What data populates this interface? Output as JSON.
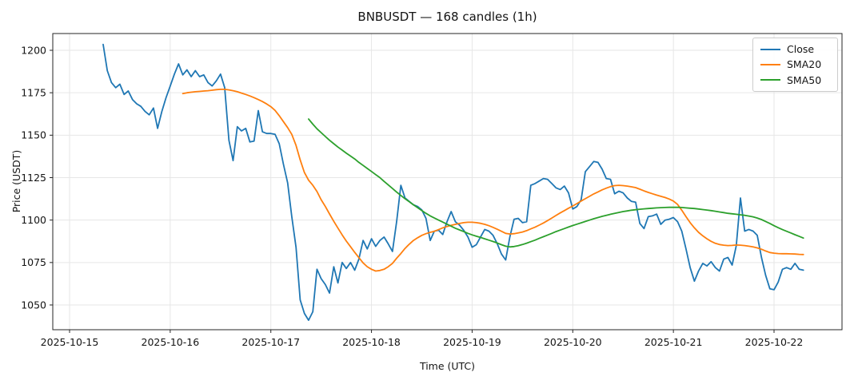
{
  "figure": {
    "title": "BNBUSDT — 168 candles (1h)",
    "xlabel": "Time (UTC)",
    "ylabel": "Price (USDT)"
  },
  "legend": {
    "position": "upper right",
    "items": [
      {
        "label": "Close",
        "color": "#1f77b4"
      },
      {
        "label": "SMA20",
        "color": "#ff7f0e"
      },
      {
        "label": "SMA50",
        "color": "#2ca02c"
      }
    ]
  },
  "style": {
    "background": "#ffffff",
    "grid_color": "#e6e6e6",
    "spine_color": "#262626",
    "text_color": "#141414",
    "line_width": 1.8
  },
  "chart_data": {
    "type": "line",
    "title": "BNBUSDT — 168 candles (1h)",
    "xlabel": "Time (UTC)",
    "ylabel": "Price (USDT)",
    "x_unit": "1h candles, 168 total",
    "x_tick_labels": [
      "2025-10-15",
      "2025-10-16",
      "2025-10-17",
      "2025-10-18",
      "2025-10-19",
      "2025-10-20",
      "2025-10-21",
      "2025-10-22"
    ],
    "first_candle_hour_offset_from_first_tick": 8,
    "y_ticks": [
      1050,
      1075,
      1100,
      1125,
      1150,
      1175,
      1200
    ],
    "ylim": [
      1035,
      1210
    ],
    "grid": true,
    "legend_position": "upper right",
    "series": [
      {
        "name": "Close",
        "color": "#1f77b4",
        "start_index": 0,
        "values": [
          1203.5,
          1188,
          1181,
          1178,
          1180,
          1174,
          1176,
          1171,
          1168.5,
          1167,
          1164,
          1162,
          1166,
          1154,
          1164,
          1172,
          1179,
          1186,
          1192,
          1185.5,
          1188.5,
          1184.5,
          1188,
          1184.5,
          1185.5,
          1181,
          1179,
          1182,
          1186,
          1178,
          1147,
          1135,
          1155,
          1152.5,
          1154,
          1146,
          1146.5,
          1164.5,
          1152,
          1151,
          1151,
          1150.5,
          1145,
          1133,
          1122,
          1102,
          1084,
          1053,
          1045,
          1041,
          1046,
          1071,
          1065.5,
          1062,
          1057,
          1072.5,
          1063,
          1075,
          1071.5,
          1075,
          1070.5,
          1077,
          1088,
          1083,
          1089,
          1084.5,
          1088,
          1090,
          1086,
          1081.5,
          1099,
          1120.5,
          1113,
          1111,
          1109,
          1108,
          1106,
          1101,
          1088,
          1093.5,
          1094,
          1091.5,
          1099,
          1105,
          1099,
          1097,
          1094,
          1090,
          1084,
          1085.5,
          1090,
          1094.5,
          1093.5,
          1091,
          1086,
          1080,
          1076.5,
          1090,
          1100.5,
          1101,
          1098.5,
          1099,
          1120.5,
          1121.5,
          1123,
          1124.5,
          1124,
          1121.5,
          1119,
          1118,
          1120,
          1116,
          1106.5,
          1108,
          1112,
          1128.5,
          1131.5,
          1134.5,
          1134,
          1130,
          1124.5,
          1124,
          1115.5,
          1117,
          1116,
          1113,
          1111,
          1110.5,
          1098,
          1095,
          1102,
          1102.5,
          1103.5,
          1097.5,
          1100,
          1100.5,
          1101.5,
          1099,
          1093.5,
          1083,
          1072,
          1064,
          1070,
          1074.5,
          1073,
          1075.5,
          1072,
          1070,
          1077,
          1078,
          1073.5,
          1085,
          1113,
          1093.5,
          1094.5,
          1093.5,
          1091,
          1078,
          1067.5,
          1059.5,
          1059,
          1063.5,
          1071,
          1072,
          1071,
          1074.5,
          1071,
          1070.5
        ]
      },
      {
        "name": "SMA20",
        "color": "#ff7f0e",
        "start_index": 19,
        "values": [
          1174.5,
          1175,
          1175.3,
          1175.6,
          1175.8,
          1176,
          1176.2,
          1176.5,
          1176.8,
          1177,
          1177,
          1176.7,
          1176.2,
          1175.6,
          1174.8,
          1174,
          1173.1,
          1172.1,
          1171,
          1169.8,
          1168.4,
          1166.8,
          1164.6,
          1161.5,
          1158,
          1154.5,
          1150.5,
          1144,
          1135.5,
          1128,
          1123.5,
          1120.5,
          1116.8,
          1112,
          1108,
          1103.6,
          1099.3,
          1095.3,
          1091.3,
          1087.6,
          1084.3,
          1081,
          1077.9,
          1074.8,
          1072.5,
          1071,
          1070,
          1070.3,
          1071,
          1072.5,
          1074.5,
          1077.5,
          1080.3,
          1083.3,
          1085.8,
          1088,
          1089.6,
          1091,
          1092,
          1092.8,
          1093.4,
          1094.4,
          1095.4,
          1096.2,
          1096.9,
          1097.5,
          1098,
          1098.5,
          1098.7,
          1098.7,
          1098.5,
          1098.1,
          1097.5,
          1096.7,
          1095.7,
          1094.6,
          1093.4,
          1092.2,
          1091.8,
          1092,
          1092.4,
          1093,
          1093.8,
          1094.8,
          1095.8,
          1097,
          1098.3,
          1099.7,
          1101.2,
          1102.7,
          1104.2,
          1105.6,
          1107,
          1108.3,
          1109.7,
          1111.2,
          1112.6,
          1114,
          1115.4,
          1116.6,
          1117.8,
          1118.8,
          1119.7,
          1120.3,
          1120.5,
          1120.3,
          1120,
          1119.6,
          1119.1,
          1118.2,
          1117.2,
          1116.3,
          1115.5,
          1114.7,
          1114,
          1113.3,
          1112.4,
          1111.2,
          1109.2,
          1105.8,
          1102,
          1098.5,
          1095.4,
          1092.8,
          1090.7,
          1089,
          1087.5,
          1086.3,
          1085.6,
          1085.2,
          1085,
          1085.1,
          1085.3,
          1085.2,
          1085,
          1084.6,
          1084.2,
          1083.6,
          1082.8,
          1081.8,
          1080.9,
          1080.5,
          1080.3,
          1080.2,
          1080.2,
          1080.1,
          1080,
          1079.8,
          1079.7
        ]
      },
      {
        "name": "SMA50",
        "color": "#2ca02c",
        "start_index": 49,
        "values": [
          1159.5,
          1156.5,
          1153.8,
          1151.5,
          1149.2,
          1147,
          1145,
          1143,
          1141.2,
          1139.4,
          1137.7,
          1136,
          1134,
          1132.2,
          1130.4,
          1128.6,
          1126.8,
          1125,
          1122.8,
          1120.7,
          1118.6,
          1116.5,
          1114.5,
          1112.6,
          1110.8,
          1109,
          1107.3,
          1105.6,
          1104,
          1102.5,
          1101.2,
          1100,
          1098.8,
          1097.6,
          1096.4,
          1095.2,
          1094.2,
          1093.2,
          1092.2,
          1091.3,
          1090.5,
          1089.8,
          1089,
          1088.2,
          1087.4,
          1086.5,
          1085.5,
          1084.6,
          1084.2,
          1084.4,
          1084.9,
          1085.6,
          1086.4,
          1087.3,
          1088.2,
          1089.2,
          1090.2,
          1091.2,
          1092.2,
          1093.2,
          1094.1,
          1095,
          1095.9,
          1096.8,
          1097.6,
          1098.4,
          1099.2,
          1100,
          1100.8,
          1101.5,
          1102.2,
          1102.8,
          1103.4,
          1104,
          1104.5,
          1105,
          1105.4,
          1105.8,
          1106.1,
          1106.4,
          1106.6,
          1106.8,
          1107,
          1107.2,
          1107.3,
          1107.4,
          1107.5,
          1107.5,
          1107.5,
          1107.4,
          1107.2,
          1107,
          1106.8,
          1106.5,
          1106.2,
          1105.9,
          1105.6,
          1105.2,
          1104.8,
          1104.4,
          1104,
          1103.7,
          1103.4,
          1103.1,
          1102.8,
          1102.4,
          1101.9,
          1101.2,
          1100.3,
          1099.2,
          1098,
          1096.7,
          1095.5,
          1094.4,
          1093.4,
          1092.4,
          1091.4,
          1090.4,
          1089.4
        ]
      }
    ]
  }
}
